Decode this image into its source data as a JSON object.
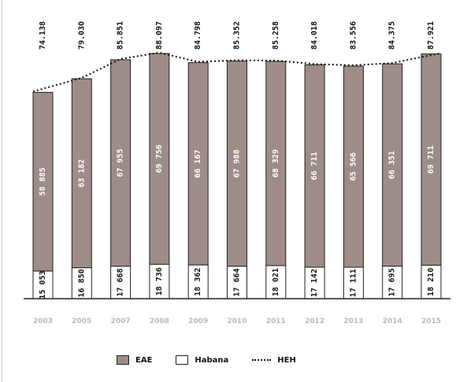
{
  "chart_data": {
    "type": "bar",
    "stacked": true,
    "categories": [
      "2003",
      "2005",
      "2007",
      "2008",
      "2009",
      "2010",
      "2011",
      "2012",
      "2013",
      "2014",
      "2015"
    ],
    "series": [
      {
        "name": "EAE",
        "color": "#9e8c89",
        "values": [
          58.885,
          63.182,
          67.955,
          69.756,
          66.167,
          67.988,
          68.329,
          66.711,
          65.566,
          66.351,
          69.711
        ],
        "labels": [
          "58 885",
          "63 182",
          "67 955",
          "69 756",
          "66 167",
          "67 988",
          "68 329",
          "66 711",
          "65 566",
          "66 351",
          "69 711"
        ]
      },
      {
        "name": "Habana",
        "color": "#ffffff",
        "values": [
          15.053,
          16.85,
          17.668,
          18.736,
          18.362,
          17.664,
          18.021,
          17.142,
          17.111,
          17.695,
          18.21
        ],
        "labels": [
          "15 053",
          "16 850",
          "17 668",
          "18 736",
          "18 362",
          "17 664",
          "18 021",
          "17 142",
          "17 111",
          "17 695",
          "18 210"
        ]
      }
    ],
    "totals": {
      "name": "HEH",
      "values": [
        74.138,
        79.03,
        85.851,
        88.097,
        84.798,
        85.352,
        85.258,
        84.018,
        83.556,
        84.375,
        87.921
      ],
      "labels": [
        "74.138",
        "79.030",
        "85.851",
        "88.097",
        "84.798",
        "85.352",
        "85.258",
        "84.018",
        "83.556",
        "84.375",
        "87.921"
      ]
    },
    "ylim": [
      0,
      100
    ],
    "grid": false,
    "legend_position": "bottom"
  }
}
